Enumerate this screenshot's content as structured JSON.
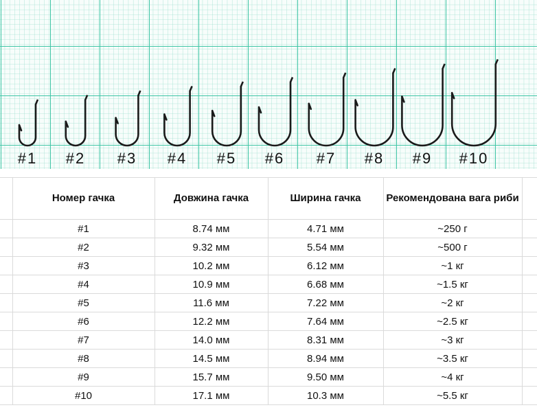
{
  "hooks": [
    "#1",
    "#2",
    "#3",
    "#4",
    "#5",
    "#6",
    "#7",
    "#8",
    "#9",
    "#10"
  ],
  "table": {
    "header": [
      "Номер гачка",
      "Довжина гачка",
      "Ширина гачка",
      "Рекомендована вага риби"
    ],
    "rows": [
      [
        "#1",
        "8.74 мм",
        "4.71 мм",
        "~250 г"
      ],
      [
        "#2",
        "9.32 мм",
        "5.54 мм",
        "~500 г"
      ],
      [
        "#3",
        "10.2 мм",
        "6.12 мм",
        "~1 кг"
      ],
      [
        "#4",
        "10.9 мм",
        "6.68 мм",
        "~1.5 кг"
      ],
      [
        "#5",
        "11.6 мм",
        "7.22 мм",
        "~2 кг"
      ],
      [
        "#6",
        "12.2 мм",
        "7.64 мм",
        "~2.5 кг"
      ],
      [
        "#7",
        "14.0 мм",
        "8.31 мм",
        "~3 кг"
      ],
      [
        "#8",
        "14.5 мм",
        "8.94 мм",
        "~3.5 кг"
      ],
      [
        "#9",
        "15.7 мм",
        "9.50 мм",
        "~4 кг"
      ],
      [
        "#10",
        "17.1 мм",
        "10.3 мм",
        "~5.5 кг"
      ]
    ]
  }
}
